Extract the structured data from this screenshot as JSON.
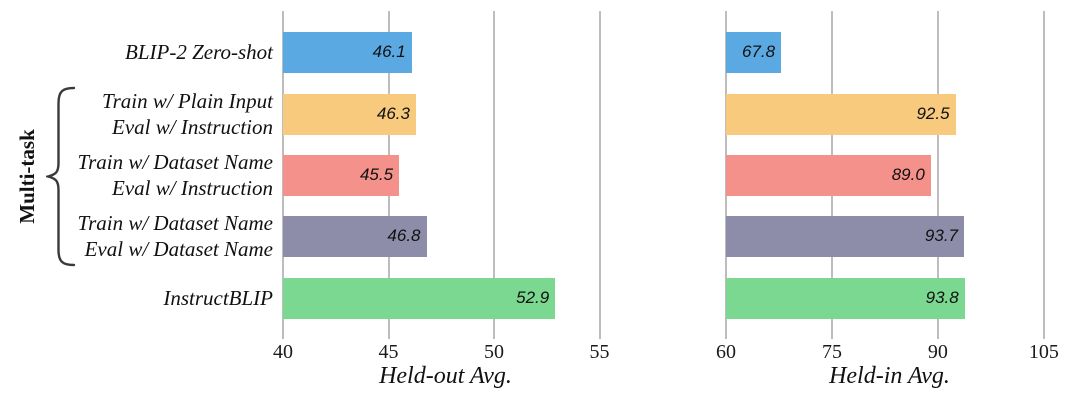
{
  "chart_data": {
    "type": "bar",
    "orientation": "horizontal",
    "grid": true,
    "categories": [
      [
        "BLIP-2 Zero-shot"
      ],
      [
        "Train w/ Plain Input",
        "Eval w/ Instruction"
      ],
      [
        "Train w/ Dataset Name",
        "Eval w/ Instruction"
      ],
      [
        "Train w/ Dataset Name",
        "Eval w/ Dataset Name"
      ],
      [
        "InstructBLIP"
      ]
    ],
    "bar_colors": [
      "#5BA9E2",
      "#F7CA7E",
      "#F4918A",
      "#8D8DAA",
      "#7AD891"
    ],
    "group_bracket": {
      "label": "Multi-task",
      "row_start": 1,
      "row_end": 3
    },
    "panels": [
      {
        "xlabel": "Held-out Avg.",
        "values": [
          46.1,
          46.3,
          45.5,
          46.8,
          52.9
        ],
        "value_labels": [
          "46.1",
          "46.3",
          "45.5",
          "46.8",
          "52.9"
        ],
        "xticks": [
          "40",
          "45",
          "50",
          "55"
        ],
        "xtick_values": [
          40,
          45,
          50,
          55
        ],
        "xlim": [
          40,
          55.4
        ]
      },
      {
        "xlabel": "Held-in Avg.",
        "values": [
          67.8,
          92.5,
          89.0,
          93.7,
          93.8
        ],
        "value_labels": [
          "67.8",
          "92.5",
          "89.0",
          "93.7",
          "93.8"
        ],
        "xticks": [
          "60",
          "75",
          "90",
          "105"
        ],
        "xtick_values": [
          60,
          75,
          90,
          105
        ],
        "xlim": [
          60,
          106.3
        ]
      }
    ],
    "colors": {
      "grid": "#bdbdbd",
      "text": "#111111",
      "brace": "#3a3a3a"
    }
  }
}
